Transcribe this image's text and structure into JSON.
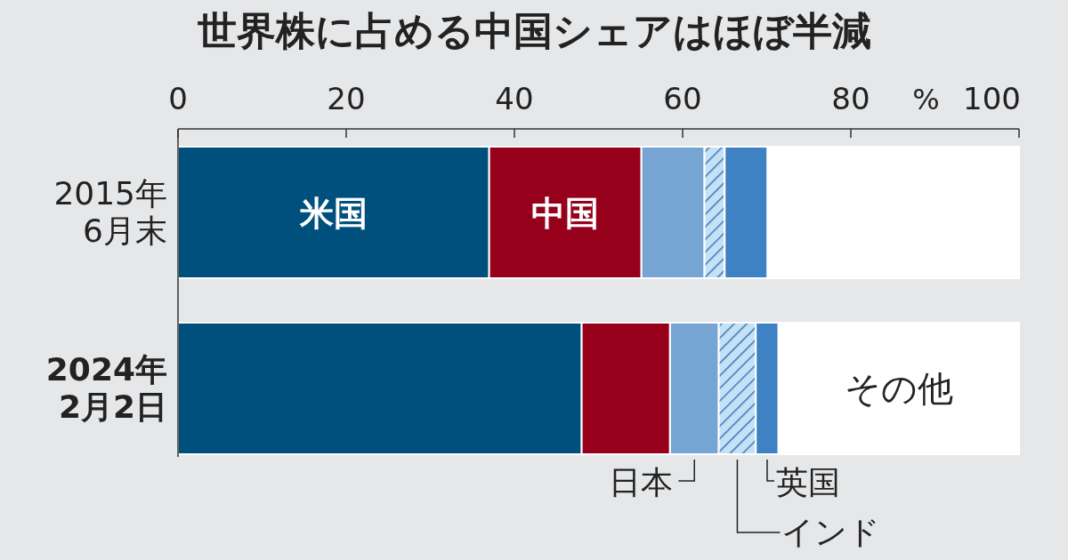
{
  "chart_data": {
    "type": "bar",
    "orientation": "horizontal",
    "stacked": true,
    "title": "世界株に占める中国シェアはほぼ半減",
    "xlabel": "%",
    "categories": [
      "2015年\n6月末",
      "2024年\n2月2日"
    ],
    "series": [
      {
        "name": "米国",
        "color": "#00507e",
        "values": [
          37.0,
          48.0
        ]
      },
      {
        "name": "中国",
        "color": "#97001b",
        "values": [
          18.1,
          10.5
        ]
      },
      {
        "name": "日本",
        "color": "#76a5d3",
        "values": [
          7.5,
          5.8
        ]
      },
      {
        "name": "インド",
        "color": "#c5e1f5",
        "values": [
          2.4,
          4.4
        ]
      },
      {
        "name": "英国",
        "color": "#3e82c4",
        "values": [
          5.1,
          2.7
        ]
      },
      {
        "name": "その他",
        "color": "#ffffff",
        "values": [
          29.9,
          28.6
        ]
      }
    ],
    "xlim": [
      0,
      100
    ],
    "xticks": [
      0,
      20,
      40,
      60,
      80,
      100
    ],
    "legend": false,
    "grid": false
  }
}
